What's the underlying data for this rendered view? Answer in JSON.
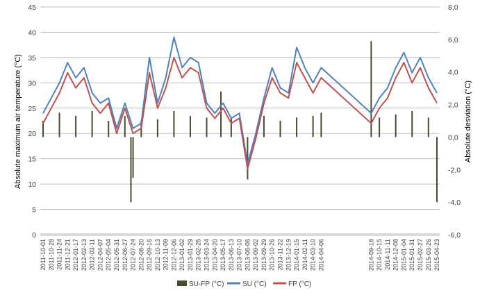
{
  "chart_data": {
    "type": "line",
    "ylabel": "Absolute maximum air temperature (°C)",
    "y2label": "Absolute desviation (°C)",
    "ylim": [
      0,
      45
    ],
    "y_ticks": [
      "0",
      "5",
      "10",
      "15",
      "20",
      "25",
      "30",
      "35",
      "40",
      "45"
    ],
    "y2lim": [
      -6,
      8
    ],
    "y2_ticks": [
      "-6,0",
      "-4,0",
      "-2,0",
      "0,0",
      "2,0",
      "4,0",
      "6,0",
      "8,0"
    ],
    "grid": true,
    "legend_position": "bottom",
    "x_ticks": [
      "2011-10-01",
      "2011-10-28",
      "2011-11-24",
      "2011-12-21",
      "2012-01-17",
      "2012-02-13",
      "2012-03-11",
      "2012-04-07",
      "2012-05-04",
      "2012-05-31",
      "2012-06-27",
      "2012-07-24",
      "2012-08-20",
      "2012-09-16",
      "2012-10-13",
      "2012-11-09",
      "2012-12-06",
      "2013-01-02",
      "2013-01-29",
      "2013-02-25",
      "2013-03-24",
      "2013-04-20",
      "2013-05-17",
      "2013-06-13",
      "2013-07-10",
      "2013-08-06",
      "2013-09-02",
      "2013-09-29",
      "2013-10-26",
      "2013-11-22",
      "2013-12-19",
      "2014-01-15",
      "2014-02-11",
      "2014-03-10",
      "2014-04-06",
      "2014-09-18",
      "2014-10-15",
      "2014-11-11",
      "2014-12-08",
      "2015-01-04",
      "2015-01-31",
      "2015-02-27",
      "2015-03-26",
      "2015-04-23"
    ],
    "series": [
      {
        "name": "SU-FP (°C)",
        "axis": "right",
        "kind": "bar",
        "color": "#4a4a30",
        "x": [
          "2011-10-01",
          "2011-11-24",
          "2012-01-17",
          "2012-03-11",
          "2012-05-04",
          "2012-06-27",
          "2012-07-17",
          "2012-07-24",
          "2012-08-20",
          "2012-10-13",
          "2012-12-06",
          "2013-01-29",
          "2013-03-24",
          "2013-05-10",
          "2013-06-13",
          "2013-08-06",
          "2013-09-29",
          "2013-11-22",
          "2014-01-15",
          "2014-03-10",
          "2014-04-06",
          "2014-09-18",
          "2014-10-15",
          "2014-12-08",
          "2015-01-31",
          "2015-03-26",
          "2015-04-23"
        ],
        "values": [
          1.0,
          1.5,
          1.3,
          1.6,
          1.0,
          1.3,
          -4.0,
          -2.5,
          1.0,
          1.1,
          1.6,
          1.3,
          1.2,
          2.8,
          1.2,
          -2.6,
          1.3,
          1.0,
          1.2,
          1.3,
          1.5,
          5.9,
          1.2,
          1.4,
          1.6,
          1.2,
          -4.0
        ]
      },
      {
        "name": "SU (°C)",
        "axis": "left",
        "color": "#4f81bd",
        "x": [
          "2011-10-01",
          "2011-10-28",
          "2011-11-24",
          "2011-12-21",
          "2012-01-17",
          "2012-02-13",
          "2012-03-11",
          "2012-04-07",
          "2012-05-04",
          "2012-05-31",
          "2012-06-27",
          "2012-07-24",
          "2012-08-20",
          "2012-09-16",
          "2012-10-13",
          "2012-11-09",
          "2012-12-06",
          "2013-01-02",
          "2013-01-29",
          "2013-02-25",
          "2013-03-24",
          "2013-04-20",
          "2013-05-17",
          "2013-06-13",
          "2013-07-10",
          "2013-08-06",
          "2013-09-02",
          "2013-09-29",
          "2013-10-26",
          "2013-11-22",
          "2013-12-19",
          "2014-01-15",
          "2014-02-11",
          "2014-03-10",
          "2014-04-06",
          "2014-09-18",
          "2014-10-15",
          "2014-11-11",
          "2014-12-08",
          "2015-01-04",
          "2015-01-31",
          "2015-02-27",
          "2015-03-26",
          "2015-04-23"
        ],
        "values": [
          24,
          27,
          30,
          34,
          31,
          33,
          28,
          26,
          27,
          21,
          26,
          21,
          22,
          35,
          26,
          31,
          39,
          33,
          35,
          34,
          26,
          24,
          26,
          23,
          24,
          14,
          20,
          27,
          33,
          29,
          28,
          37,
          33,
          30,
          33,
          24,
          27,
          29,
          33,
          36,
          32,
          35,
          31,
          28
        ]
      },
      {
        "name": "FP (°C)",
        "axis": "left",
        "color": "#c0504d",
        "x": [
          "2011-10-01",
          "2011-10-28",
          "2011-11-24",
          "2011-12-21",
          "2012-01-17",
          "2012-02-13",
          "2012-03-11",
          "2012-04-07",
          "2012-05-04",
          "2012-05-31",
          "2012-06-27",
          "2012-07-24",
          "2012-08-20",
          "2012-09-16",
          "2012-10-13",
          "2012-11-09",
          "2012-12-06",
          "2013-01-02",
          "2013-01-29",
          "2013-02-25",
          "2013-03-24",
          "2013-04-20",
          "2013-05-17",
          "2013-06-13",
          "2013-07-10",
          "2013-08-06",
          "2013-09-02",
          "2013-09-29",
          "2013-10-26",
          "2013-11-22",
          "2013-12-19",
          "2014-01-15",
          "2014-02-11",
          "2014-03-10",
          "2014-04-06",
          "2014-09-18",
          "2014-10-15",
          "2014-11-11",
          "2014-12-08",
          "2015-01-04",
          "2015-01-31",
          "2015-02-27",
          "2015-03-26",
          "2015-04-23"
        ],
        "values": [
          22,
          25,
          28,
          32,
          29,
          31,
          26,
          24,
          26,
          20,
          25,
          20,
          21,
          32,
          25,
          29,
          35,
          31,
          33,
          32,
          25,
          23,
          25,
          22,
          23,
          13,
          19,
          26,
          31,
          28,
          27,
          34,
          31,
          28,
          31,
          22,
          25,
          27,
          31,
          34,
          30,
          33,
          29,
          26
        ]
      }
    ]
  }
}
